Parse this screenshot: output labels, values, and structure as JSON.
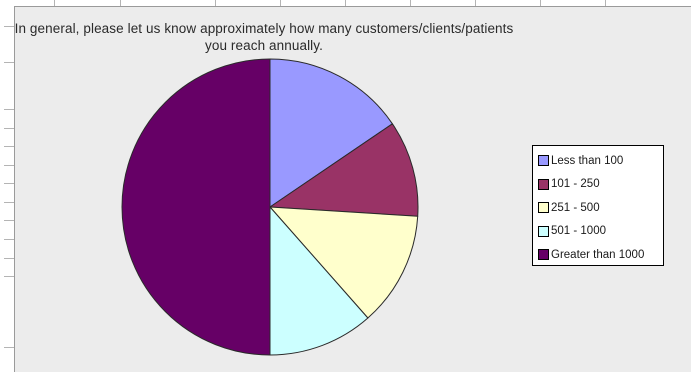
{
  "chart_data": {
    "type": "pie",
    "title": "In general, please let us know approximately how many customers/clients/patients you reach annually.",
    "categories": [
      "Less than 100",
      "101 - 250",
      "251 - 500",
      "501 - 1000",
      "Greater than 1000"
    ],
    "values": [
      15.5,
      10.5,
      12.5,
      11.5,
      50.0
    ],
    "unit": "percent",
    "start_angle_deg": 0,
    "direction": "clockwise",
    "colors": [
      "#9999ff",
      "#993366",
      "#ffffcc",
      "#ccffff",
      "#660066"
    ],
    "legend_position": "right",
    "legend": [
      "Less than 100",
      "101 - 250",
      "251 - 500",
      "501 - 1000",
      "Greater than 1000"
    ]
  },
  "colors": {
    "background": "#ececec",
    "slice_border": "#2a2a2a"
  }
}
